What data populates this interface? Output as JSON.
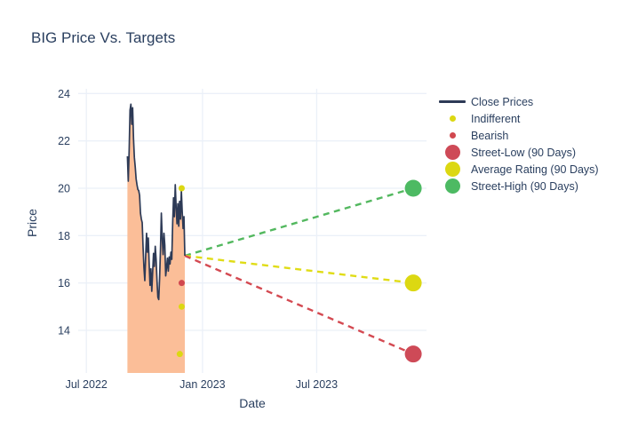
{
  "title": "BIG Price Vs. Targets",
  "colors": {
    "text": "#2a3f5f",
    "grid": "#ebf0f8",
    "close_line": "#2d3a56",
    "area_fill": "#fbbe98",
    "indifferent": "#dcd812",
    "bearish": "#d1484f",
    "street_low": "#ce4a57",
    "average_rating": "#dcd812",
    "street_high": "#4dba63"
  },
  "axes": {
    "x_label": "Date",
    "y_label": "Price"
  },
  "legend": {
    "items": [
      {
        "label": "Close Prices",
        "swatch": "line",
        "color": "#2d3a56"
      },
      {
        "label": "Indifferent",
        "swatch": "dot",
        "color": "#dcd812"
      },
      {
        "label": "Bearish",
        "swatch": "dot",
        "color": "#d1484f"
      },
      {
        "label": "Street-Low (90 Days)",
        "swatch": "bubble",
        "color": "#ce4a57"
      },
      {
        "label": "Average Rating (90 Days)",
        "swatch": "bubble",
        "color": "#dcd812"
      },
      {
        "label": "Street-High (90 Days)",
        "swatch": "bubble",
        "color": "#4dba63"
      }
    ]
  },
  "chart_data": {
    "type": "line",
    "title": "BIG Price Vs. Targets",
    "xlabel": "Date",
    "ylabel": "Price",
    "legend_position": "right",
    "grid": true,
    "x_range": [
      "2022-06-18",
      "2023-12-22"
    ],
    "y_range": [
      12.2,
      24.2
    ],
    "x_ticks": [
      {
        "label": "Jul 2022",
        "date": "2022-07-01"
      },
      {
        "label": "Jan 2023",
        "date": "2023-01-01"
      },
      {
        "label": "Jul 2023",
        "date": "2023-07-01"
      }
    ],
    "y_ticks": [
      14,
      16,
      18,
      20,
      22,
      24
    ],
    "close_prices": {
      "name": "Close Prices",
      "color": "#2d3a56",
      "fill_color": "#fbbe98",
      "fill_to_zero": true,
      "start_date": "2022-09-04",
      "end_date": "2022-12-04",
      "values": [
        21.35,
        20.3,
        21.6,
        23.3,
        23.55,
        22.7,
        23.4,
        22.1,
        21.3,
        20.9,
        20.4,
        20.15,
        19.95,
        19.9,
        19.7,
        18.95,
        18.7,
        18.55,
        17.5,
        16.65,
        16.1,
        17.15,
        18.1,
        17.3,
        17.9,
        16.8,
        15.9,
        16.6,
        15.65,
        16.45,
        17.25,
        16.7,
        17.55,
        17.0,
        16.1,
        15.4,
        15.3,
        16.2,
        17.4,
        18.95,
        17.9,
        17.2,
        18.1,
        17.6,
        16.3,
        16.65,
        17.05,
        16.5,
        17.1,
        16.8,
        17.3,
        17.0,
        18.5,
        19.6,
        18.8,
        20.15,
        19.2,
        18.5,
        19.35,
        18.4,
        19.45,
        18.7,
        19.9,
        19.0,
        18.3,
        18.8,
        17.15
      ]
    },
    "ratings": [
      {
        "series": "Indifferent",
        "color": "#dcd812",
        "date": "2022-11-29",
        "value": 20
      },
      {
        "series": "Bearish",
        "color": "#d1484f",
        "date": "2022-11-29",
        "value": 16
      },
      {
        "series": "Indifferent",
        "color": "#dcd812",
        "date": "2022-11-29",
        "value": 15
      },
      {
        "series": "Indifferent",
        "color": "#dcd812",
        "date": "2022-11-26",
        "value": 13
      }
    ],
    "targets": {
      "origin": {
        "date": "2022-12-04",
        "value": 17.15
      },
      "points": [
        {
          "name": "Street-High (90 Days)",
          "color": "#4dba63",
          "dash_color": "#53b85f",
          "date": "2023-12-01",
          "value": 20
        },
        {
          "name": "Average Rating (90 Days)",
          "color": "#dcd812",
          "dash_color": "#e0dc16",
          "date": "2023-12-01",
          "value": 16
        },
        {
          "name": "Street-Low (90 Days)",
          "color": "#ce4a57",
          "dash_color": "#d44a52",
          "date": "2023-12-01",
          "value": 13
        }
      ]
    }
  }
}
